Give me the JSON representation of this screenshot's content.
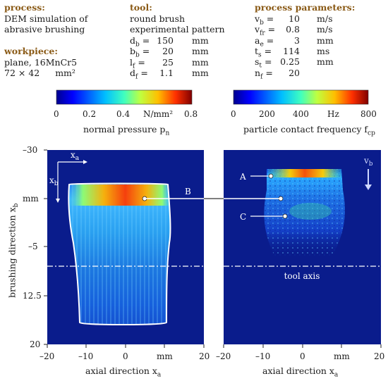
{
  "process": {
    "heading": "process:",
    "line1": "DEM simulation of",
    "line2": "abrasive brushing"
  },
  "workpiece": {
    "heading": "workpiece:",
    "line1": "plane, 16MnCr5",
    "line2": "72 × 42",
    "unit": "mm²"
  },
  "tool": {
    "heading": "tool:",
    "line1": "round brush",
    "line2": "experimental pattern",
    "params": [
      {
        "sym": "d",
        "sub": "b",
        "value": "150",
        "unit": "mm"
      },
      {
        "sym": "b",
        "sub": "b",
        "value": "20",
        "unit": "mm"
      },
      {
        "sym": "l",
        "sub": "f",
        "value": "25",
        "unit": "mm"
      },
      {
        "sym": "d",
        "sub": "f",
        "value": "1.1",
        "unit": "mm"
      }
    ]
  },
  "process_parameters": {
    "heading": "process parameters:",
    "params": [
      {
        "sym": "v",
        "sub": "b",
        "value": "10",
        "unit": "m/s"
      },
      {
        "sym": "v",
        "sub": "fr",
        "value": "0.8",
        "unit": "m/s"
      },
      {
        "sym": "a",
        "sub": "e",
        "value": "3",
        "unit": "mm"
      },
      {
        "sym": "t",
        "sub": "s",
        "value": "114",
        "unit": "ms"
      },
      {
        "sym": "s",
        "sub": "t",
        "value": "0.25",
        "unit": "mm"
      },
      {
        "sym": "n",
        "sub": "f",
        "value": "20",
        "unit": ""
      }
    ]
  },
  "colorbar_pressure": {
    "ticks": [
      "0",
      "0.2",
      "0.4",
      "0.8"
    ],
    "unit_label": "N/mm²",
    "label": "normal pressure p",
    "label_sub": "n",
    "range": [
      0,
      0.8
    ]
  },
  "colorbar_frequency": {
    "ticks": [
      "0",
      "200",
      "400",
      "800"
    ],
    "unit_label": "Hz",
    "label": "particle contact frequency f",
    "label_sub": "cp",
    "range": [
      0,
      800
    ]
  },
  "left_plot": {
    "y_ticks": [
      "–30",
      "mm",
      "–5",
      "12.5",
      "20"
    ],
    "x_ticks": [
      "–20",
      "–10",
      "0",
      "mm",
      "20"
    ],
    "ylabel": "brushing direction x",
    "ylabel_sub": "b",
    "xlabel": "axial direction x",
    "xlabel_sub": "a",
    "axis_x_label": "x",
    "axis_x_sub": "a",
    "axis_y_label": "x",
    "axis_y_sub": "b",
    "marker_b": "B"
  },
  "right_plot": {
    "x_ticks": [
      "–20",
      "–10",
      "0",
      "mm",
      "20"
    ],
    "xlabel": "axial direction x",
    "xlabel_sub": "a",
    "marker_a": "A",
    "marker_c": "C",
    "tool_axis_label": "tool axis",
    "velocity_label": "v",
    "velocity_sub": "b"
  },
  "colors": {
    "background_plot": "#0a1c8c",
    "outline": "#ffffff",
    "heading": "#8a5a16"
  }
}
